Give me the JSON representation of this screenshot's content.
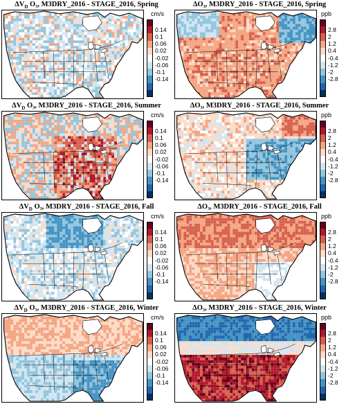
{
  "panels": [
    {
      "title_pre": "ΔV",
      "title_sub": "D",
      "title_post": " O₃, M3DRY_2016 - STAGE_2016, Spring",
      "unit": "cm/s",
      "scale": "vd",
      "pattern": "vd-spring"
    },
    {
      "title_pre": "ΔO₃",
      "title_sub": "",
      "title_post": ", M3DRY_2016 - STAGE_2016, Spring",
      "unit": "ppb",
      "scale": "o3",
      "pattern": "o3-spring"
    },
    {
      "title_pre": "ΔV",
      "title_sub": "D",
      "title_post": " O₃, M3DRY_2016 - STAGE_2016, Summer",
      "unit": "cm/s",
      "scale": "vd",
      "pattern": "vd-summer"
    },
    {
      "title_pre": "ΔO₃",
      "title_sub": "",
      "title_post": ", M3DRY_2016 - STAGE_2016, Summer",
      "unit": "ppb",
      "scale": "o3",
      "pattern": "o3-summer"
    },
    {
      "title_pre": "ΔV",
      "title_sub": "D",
      "title_post": " O₃, M3DRY_2016 - STAGE_2016, Fall",
      "unit": "cm/s",
      "scale": "vd",
      "pattern": "vd-fall"
    },
    {
      "title_pre": "ΔO₃",
      "title_sub": "",
      "title_post": ", M3DRY_2016 - STAGE_2016, Fall",
      "unit": "ppb",
      "scale": "o3",
      "pattern": "o3-fall"
    },
    {
      "title_pre": "ΔV",
      "title_sub": "D",
      "title_post": " O₃, M3DRY_2016 - STAGE_2016, Winter",
      "unit": "cm/s",
      "scale": "vd",
      "pattern": "vd-winter"
    },
    {
      "title_pre": "ΔO₃",
      "title_sub": "",
      "title_post": ", M3DRY_2016 - STAGE_2016, Winter",
      "unit": "ppb",
      "scale": "o3",
      "pattern": "o3-winter"
    }
  ],
  "colorbars": {
    "vd": {
      "ticks": [
        "0.14",
        "0.1",
        "0.06",
        "0.02",
        "-0.02",
        "-0.06",
        "-0.1",
        "-0.14"
      ]
    },
    "o3": {
      "ticks": [
        "2.8",
        "2",
        "1.2",
        "0.4",
        "-0.4",
        "-1.2",
        "-2",
        "-2.8"
      ]
    }
  },
  "colors": {
    "levels": [
      "#67001f",
      "#b2182b",
      "#d6604d",
      "#f4a582",
      "#fddbc7",
      "#ffffff",
      "#d1e5f0",
      "#92c5de",
      "#4393c3",
      "#2166ac",
      "#053061"
    ]
  }
}
